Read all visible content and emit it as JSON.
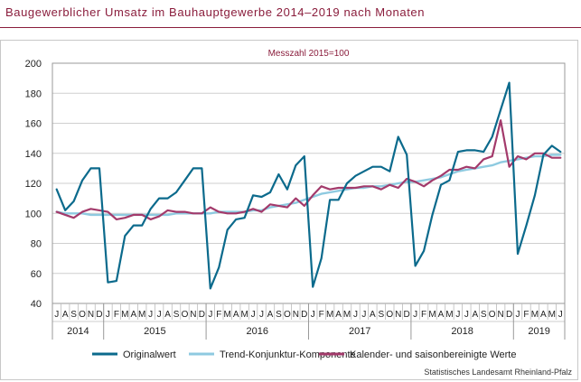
{
  "page": {
    "title": "Baugewerblicher Umsatz im Bauhauptgewerbe 2014–2019 nach Monaten",
    "source": "Statistisches Landesamt Rheinland-Pfalz"
  },
  "colors": {
    "title": "#8a1d3c",
    "original": "#0b6a8c",
    "trend": "#8ecae0",
    "adjusted": "#a33a6b"
  },
  "chart_data": {
    "type": "line",
    "subtitle": "Messzahl 2015=100",
    "xlabel": "",
    "ylabel": "",
    "ylim": [
      40,
      200
    ],
    "yticks": [
      40,
      60,
      80,
      100,
      120,
      140,
      160,
      180,
      200
    ],
    "grid": true,
    "legend_position": "bottom",
    "month_labels": [
      "J",
      "A",
      "S",
      "O",
      "N",
      "D",
      "J",
      "F",
      "M",
      "A",
      "M",
      "J",
      "J",
      "A",
      "S",
      "O",
      "N",
      "D",
      "J",
      "F",
      "M",
      "A",
      "M",
      "J",
      "J",
      "A",
      "S",
      "O",
      "N",
      "D",
      "J",
      "F",
      "M",
      "A",
      "M",
      "J",
      "J",
      "A",
      "S",
      "O",
      "N",
      "D",
      "J",
      "F",
      "M",
      "A",
      "M",
      "J",
      "J",
      "A",
      "S",
      "O",
      "N",
      "D",
      "J",
      "F",
      "M",
      "A",
      "M",
      "J"
    ],
    "years": [
      {
        "label": "2014",
        "start": 0,
        "count": 6
      },
      {
        "label": "2015",
        "start": 6,
        "count": 12
      },
      {
        "label": "2016",
        "start": 18,
        "count": 12
      },
      {
        "label": "2017",
        "start": 30,
        "count": 12
      },
      {
        "label": "2018",
        "start": 42,
        "count": 12
      },
      {
        "label": "2019",
        "start": 54,
        "count": 6
      }
    ],
    "series": [
      {
        "name": "Originalwert",
        "values": [
          116,
          102,
          108,
          122,
          130,
          130,
          54,
          55,
          85,
          92,
          92,
          103,
          110,
          110,
          114,
          122,
          130,
          130,
          50,
          64,
          89,
          96,
          97,
          112,
          111,
          114,
          126,
          116,
          132,
          138,
          51,
          70,
          109,
          109,
          120,
          125,
          128,
          131,
          131,
          128,
          151,
          139,
          65,
          75,
          99,
          119,
          122,
          141,
          142,
          142,
          141,
          151,
          169,
          187,
          73,
          92,
          112,
          139,
          145,
          141
        ]
      },
      {
        "name": "Trend-Konjunktur-Komponente",
        "values": [
          101,
          100,
          100,
          100,
          99,
          99,
          99,
          99,
          99,
          99,
          99,
          99,
          99,
          99,
          100,
          100,
          100,
          100,
          100,
          101,
          101,
          101,
          101,
          102,
          102,
          104,
          105,
          106,
          107,
          109,
          111,
          113,
          114,
          115,
          116,
          117,
          117,
          118,
          118,
          119,
          120,
          121,
          121,
          122,
          123,
          124,
          126,
          128,
          129,
          130,
          131,
          132,
          134,
          135,
          136,
          137,
          138,
          138,
          139,
          139
        ]
      },
      {
        "name": "Kalender- und saisonbereinigte Werte",
        "values": [
          101,
          99,
          97,
          101,
          103,
          102,
          101,
          96,
          97,
          99,
          99,
          96,
          98,
          102,
          101,
          101,
          100,
          100,
          104,
          101,
          100,
          100,
          101,
          103,
          101,
          106,
          105,
          104,
          110,
          105,
          112,
          118,
          116,
          117,
          117,
          117,
          118,
          118,
          116,
          119,
          117,
          123,
          121,
          118,
          122,
          125,
          129,
          129,
          131,
          130,
          136,
          138,
          162,
          131,
          138,
          136,
          140,
          140,
          137,
          137
        ]
      }
    ]
  }
}
